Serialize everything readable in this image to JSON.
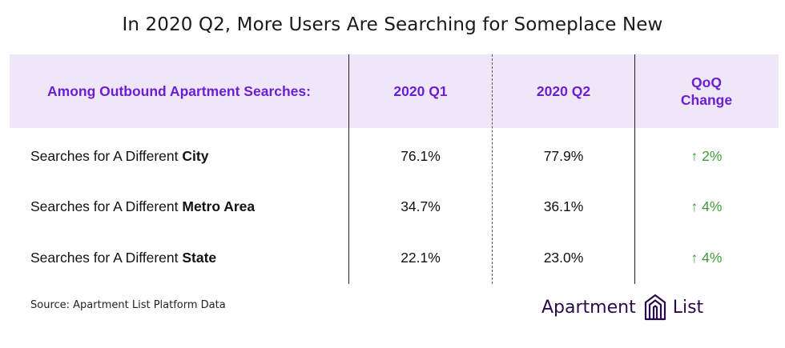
{
  "title": "In 2020 Q2, More Users Are Searching for Someplace New",
  "table": {
    "headers": {
      "label": "Among Outbound Apartment Searches:",
      "q1": "2020 Q1",
      "q2": "2020 Q2",
      "change_line1": "QoQ",
      "change_line2": "Change"
    },
    "rows": [
      {
        "prefix": "Searches for A Different ",
        "bold": "City",
        "q1": "76.1%",
        "q2": "77.9%",
        "change": "↑ 2%"
      },
      {
        "prefix": "Searches for A Different ",
        "bold": "Metro Area",
        "q1": "34.7%",
        "q2": "36.1%",
        "change": "↑ 4%"
      },
      {
        "prefix": "Searches for A Different ",
        "bold": "State",
        "q1": "22.1%",
        "q2": "23.0%",
        "change": "↑ 4%"
      }
    ]
  },
  "source": "Source: Apartment List Platform Data",
  "logo": {
    "word1": "Apartment",
    "word2": "List",
    "icon": "building-logo-icon"
  },
  "colors": {
    "header_bg": "#efe6f8",
    "header_text": "#6a1fd0",
    "change_text": "#3f9f3a",
    "logo_text": "#2a0a4a"
  }
}
